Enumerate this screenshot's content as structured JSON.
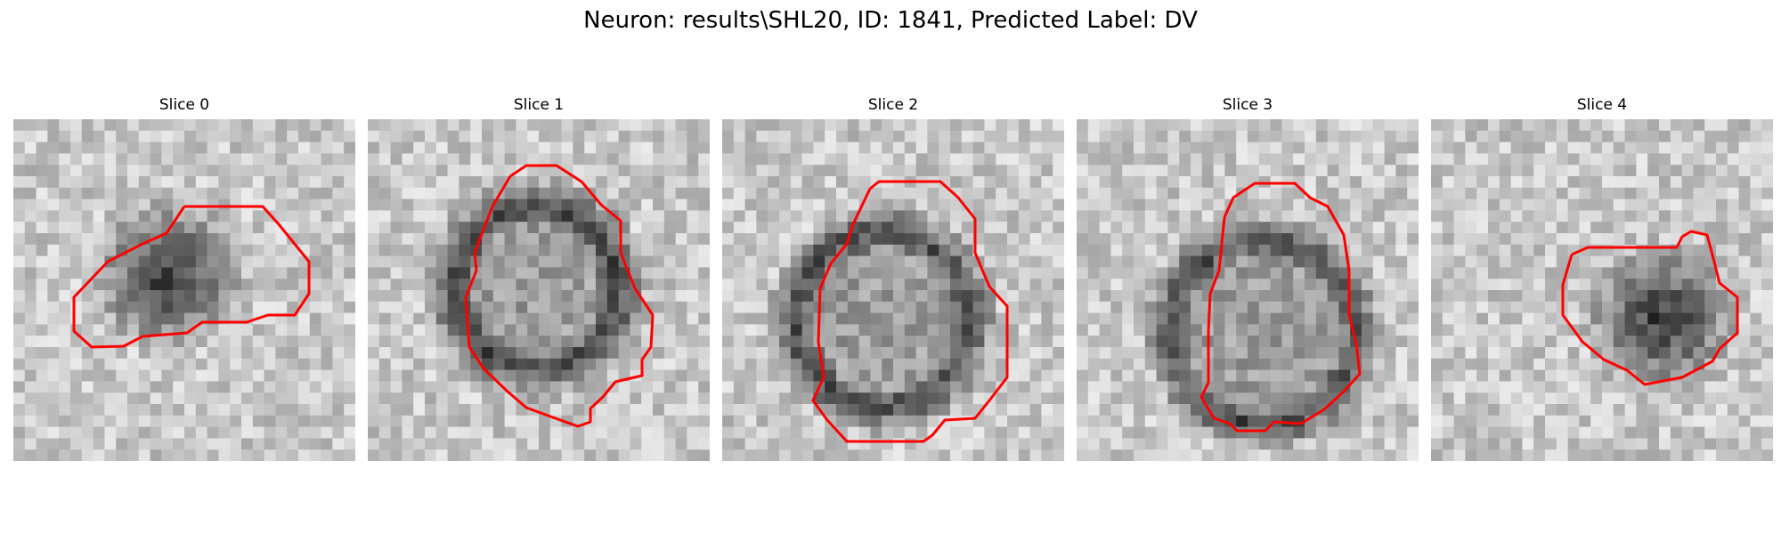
{
  "figure": {
    "title": "Neuron: results\\SHL20, ID: 1841, Predicted Label: DV",
    "contour_color": "#ff0000",
    "panels": [
      {
        "label": "Slice 0",
        "seed": 11,
        "shape": "blob"
      },
      {
        "label": "Slice 1",
        "seed": 23,
        "shape": "ring"
      },
      {
        "label": "Slice 2",
        "seed": 37,
        "shape": "ring"
      },
      {
        "label": "Slice 3",
        "seed": 51,
        "shape": "ring"
      },
      {
        "label": "Slice 4",
        "seed": 67,
        "shape": "blob"
      }
    ]
  }
}
